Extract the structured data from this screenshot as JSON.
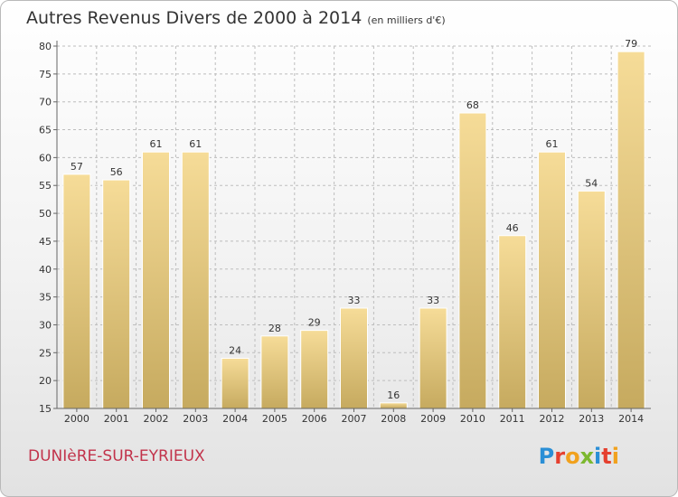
{
  "title": "Autres Revenus Divers de 2000 à 2014",
  "subtitle": "(en milliers d'€)",
  "city": "DUNIèRE-SUR-EYRIEUX",
  "logo": {
    "text": "Proxiti",
    "letters": [
      {
        "char": "P",
        "color": "#2a8fd6"
      },
      {
        "char": "r",
        "color": "#e5402f"
      },
      {
        "char": "o",
        "color": "#f1a11d"
      },
      {
        "char": "x",
        "color": "#7cb82f"
      },
      {
        "char": "i",
        "color": "#2a8fd6"
      },
      {
        "char": "t",
        "color": "#e5402f"
      },
      {
        "char": "i",
        "color": "#f1a11d"
      }
    ]
  },
  "colors": {
    "bar_top": "#f6dc98",
    "bar_bottom": "#c6aa5f",
    "grid": "#bdbdbd",
    "city": "#c2334b"
  },
  "chart_data": {
    "type": "bar",
    "categories": [
      "2000",
      "2001",
      "2002",
      "2003",
      "2004",
      "2005",
      "2006",
      "2007",
      "2008",
      "2009",
      "2010",
      "2011",
      "2012",
      "2013",
      "2014"
    ],
    "values": [
      57,
      56,
      61,
      61,
      24,
      28,
      29,
      33,
      16,
      33,
      68,
      46,
      61,
      54,
      79
    ],
    "ylim": [
      15,
      80
    ],
    "yticks": [
      15,
      20,
      25,
      30,
      35,
      40,
      45,
      50,
      55,
      60,
      65,
      70,
      75,
      80
    ],
    "grid": true,
    "xlabel": "",
    "ylabel": ""
  }
}
